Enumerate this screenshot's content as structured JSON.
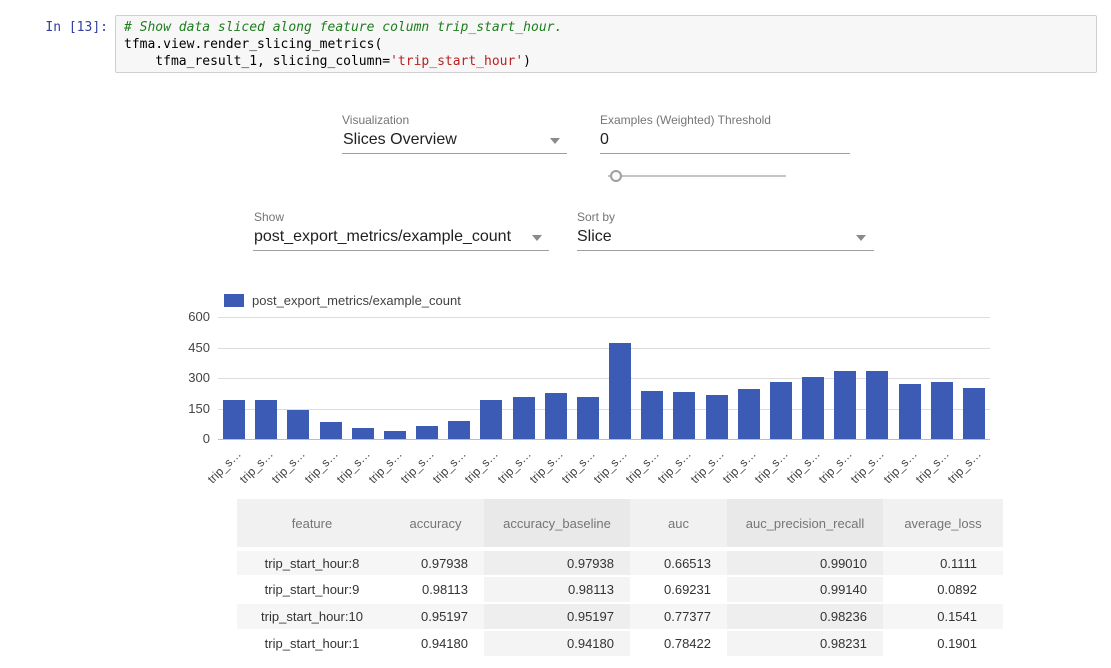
{
  "notebook": {
    "prompt": "In [13]:",
    "code_lines": [
      [
        {
          "text": "# Show data sliced along feature column trip_start_hour.",
          "style": "comment"
        }
      ],
      [
        {
          "text": "tfma.view.render_slicing_metrics(",
          "style": "plain"
        }
      ],
      [
        {
          "text": "    tfma_result_1, slicing_column=",
          "style": "plain"
        },
        {
          "text": "'trip_start_hour'",
          "style": "string"
        },
        {
          "text": ")",
          "style": "plain"
        }
      ]
    ]
  },
  "controls": {
    "visualization": {
      "label": "Visualization",
      "value": "Slices Overview"
    },
    "threshold": {
      "label": "Examples (Weighted) Threshold",
      "value": "0"
    },
    "show": {
      "label": "Show",
      "value": "post_export_metrics/example_count"
    },
    "sort": {
      "label": "Sort by",
      "value": "Slice"
    }
  },
  "chart_data": {
    "type": "bar",
    "title": "",
    "legend": [
      "post_export_metrics/example_count"
    ],
    "legend_position": "top",
    "bar_color": "#3c5bb5",
    "grid": true,
    "ylim": [
      0,
      600
    ],
    "yticks": [
      0,
      150,
      300,
      450,
      600
    ],
    "categories": [
      "trip_s…",
      "trip_s…",
      "trip_s…",
      "trip_s…",
      "trip_s…",
      "trip_s…",
      "trip_s…",
      "trip_s…",
      "trip_s…",
      "trip_s…",
      "trip_s…",
      "trip_s…",
      "trip_s…",
      "trip_s…",
      "trip_s…",
      "trip_s…",
      "trip_s…",
      "trip_s…",
      "trip_s…",
      "trip_s…",
      "trip_s…",
      "trip_s…",
      "trip_s…",
      "trip_s…"
    ],
    "values": [
      190,
      190,
      145,
      85,
      55,
      40,
      65,
      90,
      190,
      205,
      225,
      205,
      470,
      235,
      230,
      215,
      245,
      280,
      305,
      335,
      335,
      270,
      280,
      250
    ]
  },
  "table": {
    "columns": [
      "feature",
      "accuracy",
      "accuracy_baseline",
      "auc",
      "auc_precision_recall",
      "average_loss"
    ],
    "rows": [
      [
        "trip_start_hour:8",
        "0.97938",
        "0.97938",
        "0.66513",
        "0.99010",
        "0.1111"
      ],
      [
        "trip_start_hour:9",
        "0.98113",
        "0.98113",
        "0.69231",
        "0.99140",
        "0.0892"
      ],
      [
        "trip_start_hour:10",
        "0.95197",
        "0.95197",
        "0.77377",
        "0.98236",
        "0.1541"
      ],
      [
        "trip_start_hour:1",
        "0.94180",
        "0.94180",
        "0.78422",
        "0.98231",
        "0.1901"
      ]
    ]
  }
}
